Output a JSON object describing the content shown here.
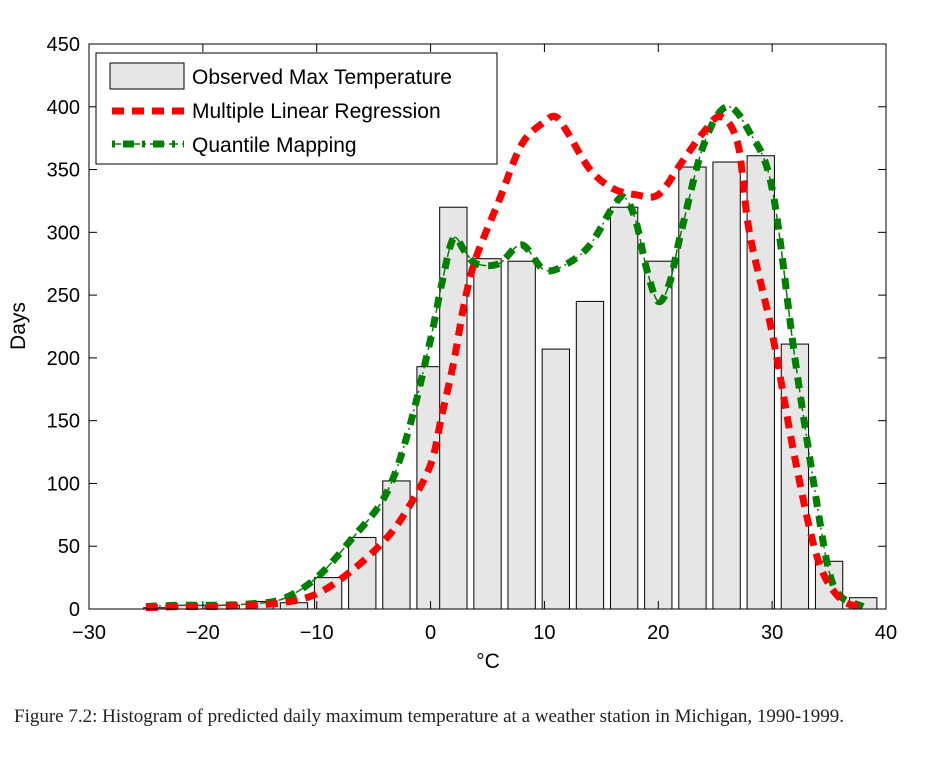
{
  "chart_data": {
    "type": "bar",
    "title": "",
    "xlabel": "°C",
    "ylabel": "Days",
    "xlim": [
      -30,
      40
    ],
    "ylim": [
      0,
      450
    ],
    "xticks": [
      -30,
      -20,
      -10,
      0,
      10,
      20,
      30,
      40
    ],
    "xtick_labels": [
      "−30",
      "−20",
      "−10",
      "0",
      "10",
      "20",
      "30",
      "40"
    ],
    "yticks": [
      0,
      50,
      100,
      150,
      200,
      250,
      300,
      350,
      400,
      450
    ],
    "ytick_labels": [
      "0",
      "50",
      "100",
      "150",
      "200",
      "250",
      "300",
      "350",
      "400",
      "450"
    ],
    "grid": false,
    "legend_position": "top-left",
    "bar_width": 2.4,
    "bars": {
      "name": "Observed Max Temperature",
      "color": "#e6e6e6",
      "x": [
        -24,
        -21,
        -18,
        -15,
        -12,
        -9,
        -6,
        -3,
        0,
        2,
        5,
        8,
        11,
        14,
        17,
        20,
        23,
        26,
        29,
        32,
        35,
        38
      ],
      "values": [
        1,
        3,
        3,
        6,
        5,
        25,
        57,
        102,
        193,
        320,
        279,
        277,
        207,
        245,
        320,
        277,
        352,
        356,
        361,
        211,
        38,
        9
      ]
    },
    "series": [
      {
        "name": "Multiple Linear Regression",
        "color": "#ff0000",
        "style": "dashed",
        "x": [
          -25,
          -22,
          -19,
          -16,
          -13,
          -10,
          -7,
          -4,
          -2,
          0,
          1,
          2,
          3,
          4,
          6,
          8,
          10,
          11,
          12,
          14,
          16,
          18,
          20,
          22,
          24,
          25.5,
          27,
          28,
          30,
          32,
          34,
          36,
          38
        ],
        "y": [
          1,
          2,
          2,
          3,
          5,
          12,
          30,
          55,
          80,
          115,
          155,
          195,
          245,
          280,
          325,
          370,
          388,
          392,
          380,
          350,
          335,
          330,
          330,
          355,
          380,
          392,
          370,
          300,
          220,
          120,
          40,
          8,
          2
        ]
      },
      {
        "name": "Quantile Mapping",
        "color": "#008000",
        "style": "dash-dot",
        "x": [
          -25,
          -22,
          -19,
          -16,
          -13,
          -10,
          -7,
          -4,
          -2,
          0,
          1,
          2,
          3,
          4,
          6,
          8,
          10,
          12,
          14,
          16,
          17,
          18,
          19,
          20,
          21,
          22,
          24,
          26,
          28,
          30,
          32,
          34,
          35,
          36,
          38
        ],
        "y": [
          2,
          3,
          3,
          4,
          8,
          25,
          55,
          90,
          140,
          215,
          260,
          295,
          285,
          275,
          275,
          290,
          270,
          275,
          290,
          320,
          328,
          310,
          270,
          245,
          260,
          300,
          370,
          400,
          380,
          335,
          200,
          80,
          30,
          10,
          2
        ]
      }
    ]
  },
  "figure": {
    "caption": "Figure 7.2: Histogram of predicted daily maximum temperature at a weather station in Michigan, 1990-1999."
  }
}
